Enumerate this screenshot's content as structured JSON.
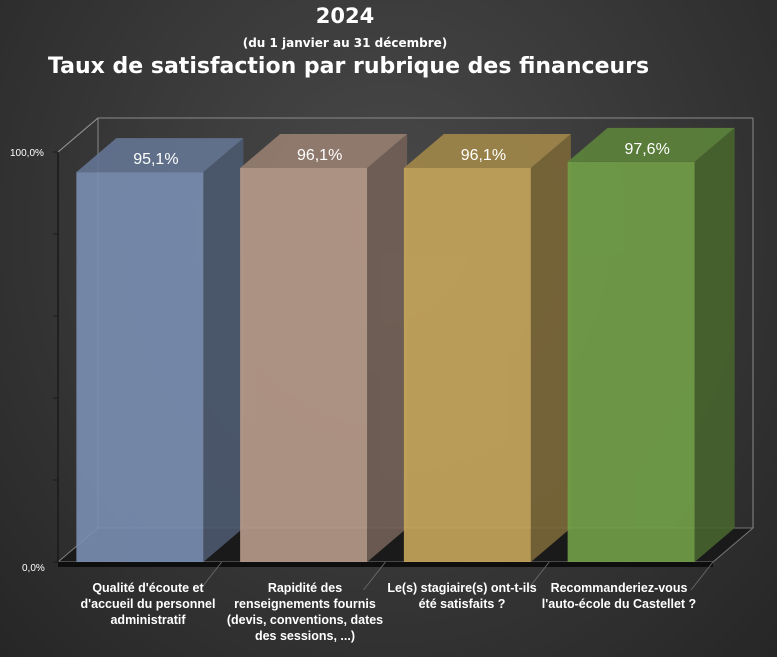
{
  "header": {
    "year": "2024",
    "period": "(du 1 janvier au 31 décembre)",
    "title": "Taux de satisfaction par rubrique des financeurs"
  },
  "chart_data": {
    "type": "bar",
    "categories": [
      "Qualité d'écoute et d'accueil du personnel administratif",
      "Rapidité des renseignements fournis (devis, conventions, dates des sessions, ...)",
      "Le(s) stagiaire(s) ont-t-ils été satisfaits ?",
      "Recommanderiez-vous l'auto-école du Castellet ?"
    ],
    "values": [
      95.1,
      96.1,
      96.1,
      97.6
    ],
    "value_labels": [
      "95,1%",
      "96,1%",
      "96,1%",
      "97,6%"
    ],
    "colors": [
      "#7a8fb3",
      "#b89b8a",
      "#c6a65a",
      "#72a148"
    ],
    "ylim": [
      0,
      100
    ],
    "y_tick_labels": [
      "0,0%",
      "100,0%"
    ],
    "grid": true,
    "legend": "none"
  }
}
